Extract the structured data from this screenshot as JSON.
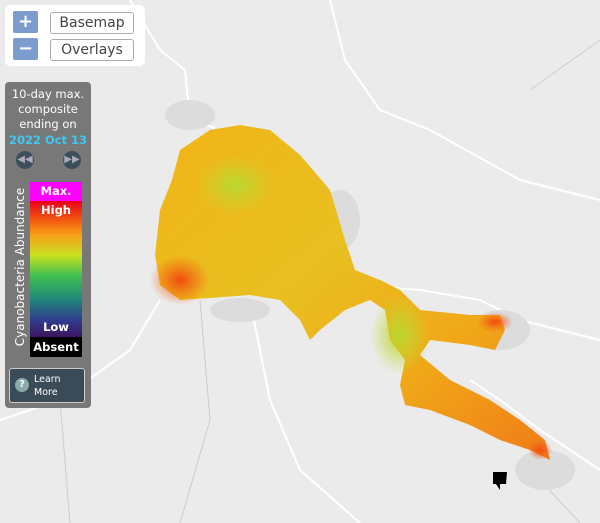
{
  "controls": {
    "zoom_in": "+",
    "zoom_out": "−",
    "basemap": "Basemap",
    "overlays": "Overlays"
  },
  "legend": {
    "title": "10-day max. composite ending on",
    "date": "2022 Oct 13",
    "max": "Max.",
    "high": "High",
    "low": "Low",
    "absent": "Absent",
    "axis_label": "Cyanobacteria Abundance",
    "learn_more": "Learn More"
  }
}
